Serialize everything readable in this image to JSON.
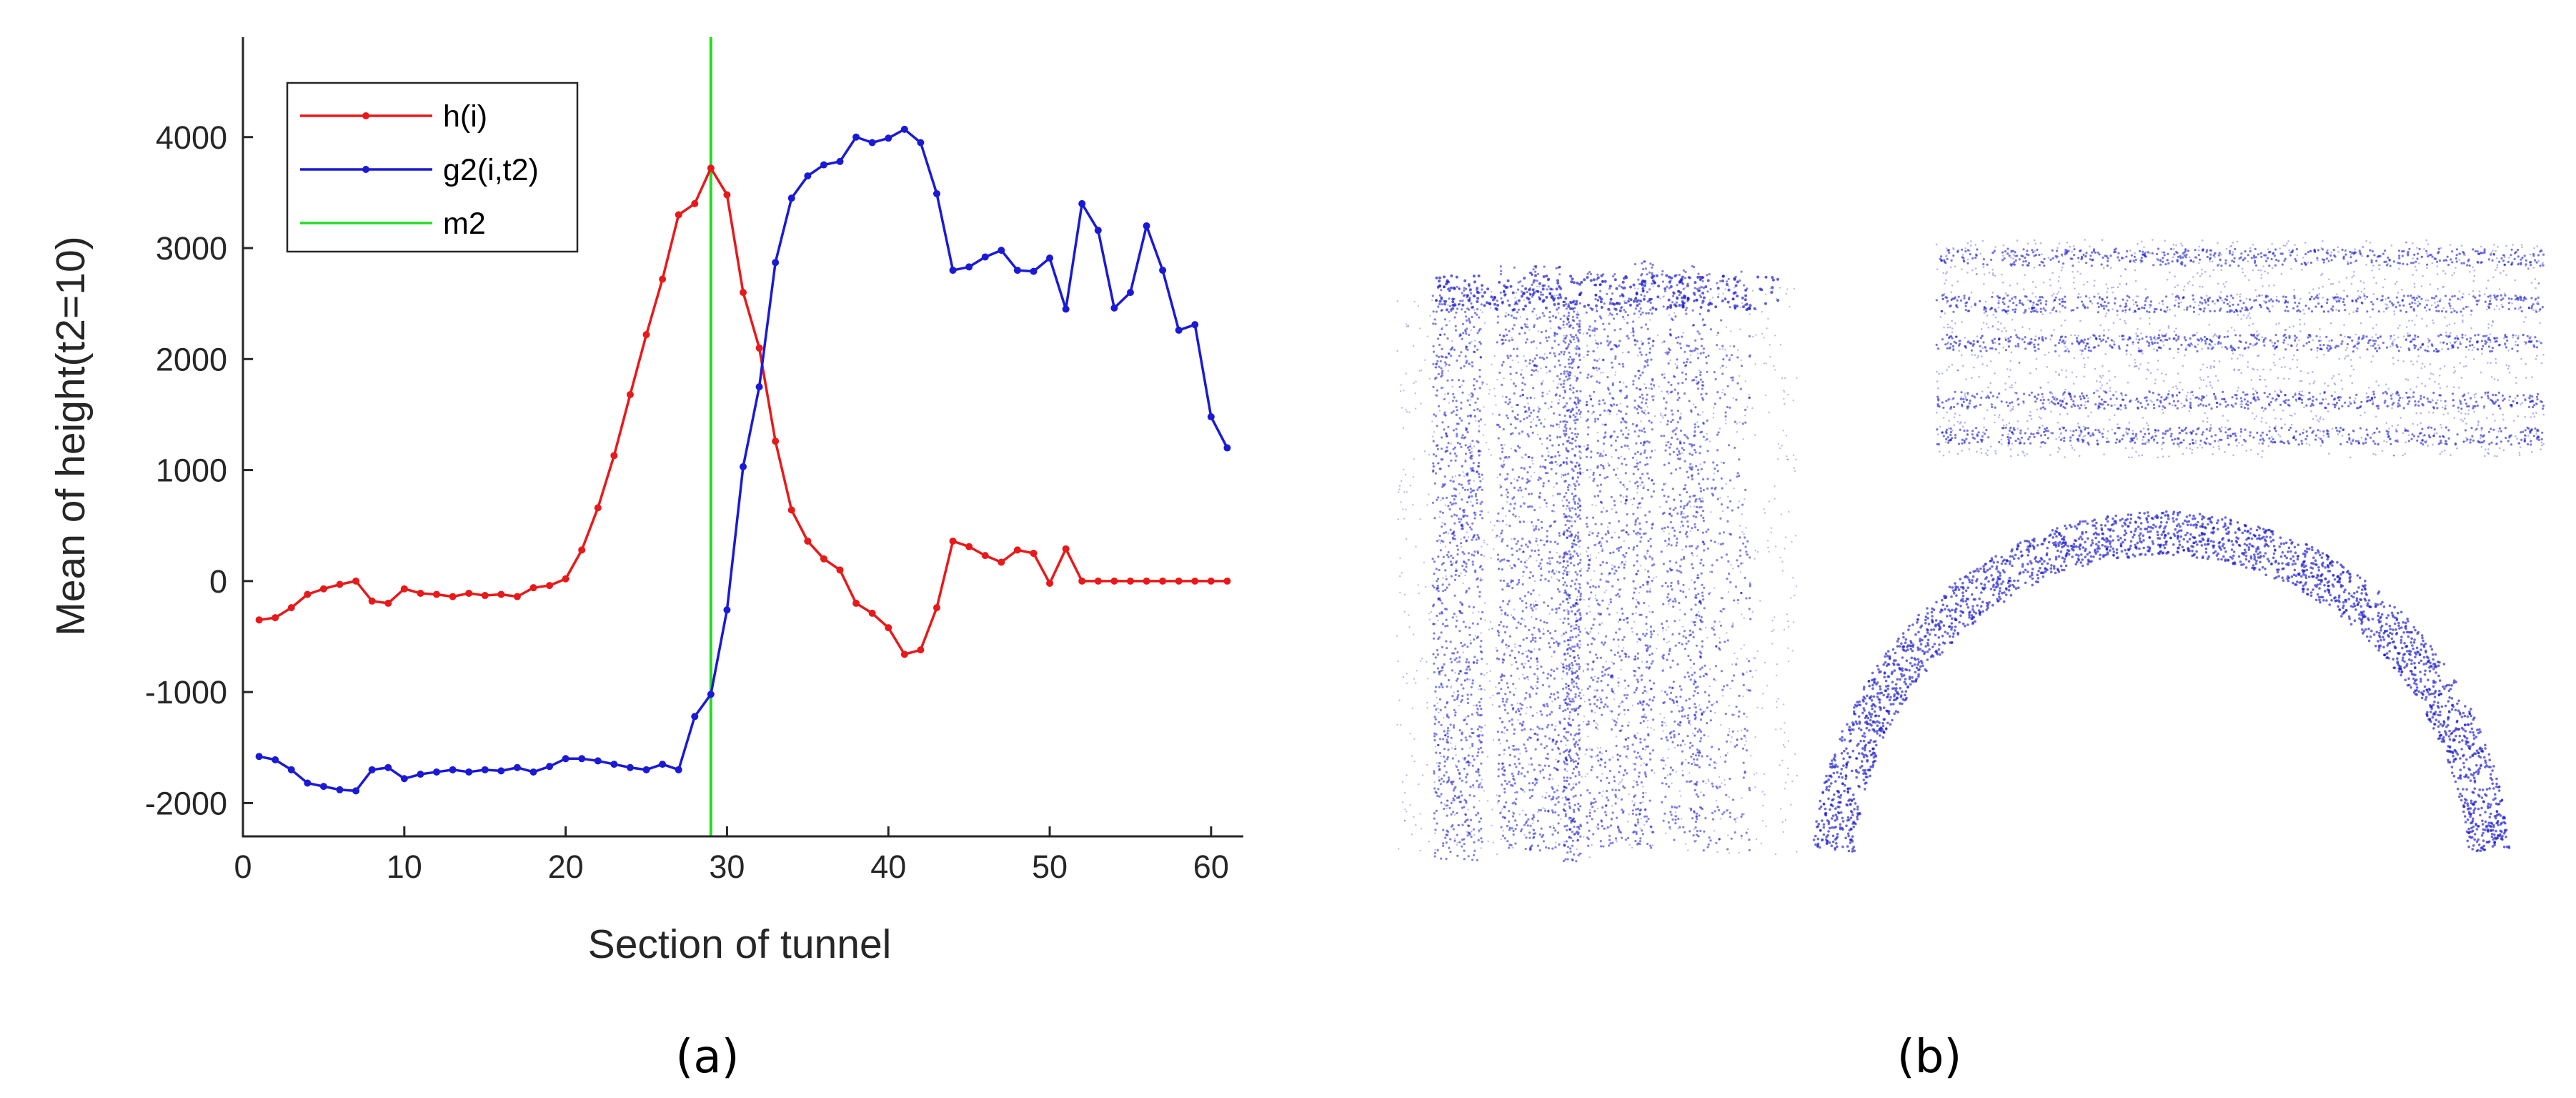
{
  "panel_labels": {
    "a": "(a)",
    "b": "(b)"
  },
  "chart_data": {
    "type": "line",
    "xlabel": "Section of tunnel",
    "ylabel": "Mean of height(t2=10)",
    "xlim": [
      0,
      62
    ],
    "ylim": [
      -2300,
      4900
    ],
    "xticks": [
      0,
      10,
      20,
      30,
      40,
      50,
      60
    ],
    "yticks": [
      -2000,
      -1000,
      0,
      1000,
      2000,
      3000,
      4000
    ],
    "grid": false,
    "legend_position": "top-left",
    "x": [
      1,
      2,
      3,
      4,
      5,
      6,
      7,
      8,
      9,
      10,
      11,
      12,
      13,
      14,
      15,
      16,
      17,
      18,
      19,
      20,
      21,
      22,
      23,
      24,
      25,
      26,
      27,
      28,
      29,
      30,
      31,
      32,
      33,
      34,
      35,
      36,
      37,
      38,
      39,
      40,
      41,
      42,
      43,
      44,
      45,
      46,
      47,
      48,
      49,
      50,
      51,
      52,
      53,
      54,
      55,
      56,
      57,
      58,
      59,
      60,
      61
    ],
    "series": [
      {
        "name": "h(i)",
        "color": "#e8191a",
        "marker": "dot",
        "values": [
          -350,
          -330,
          -240,
          -120,
          -70,
          -30,
          0,
          -180,
          -200,
          -70,
          -110,
          -120,
          -140,
          -110,
          -130,
          -120,
          -140,
          -60,
          -40,
          20,
          280,
          660,
          1130,
          1680,
          2220,
          2720,
          3300,
          3400,
          3720,
          3480,
          2600,
          2100,
          1260,
          640,
          360,
          200,
          100,
          -200,
          -290,
          -420,
          -660,
          -620,
          -240,
          360,
          310,
          230,
          170,
          280,
          250,
          -20,
          290,
          0,
          0,
          0,
          0,
          0,
          0,
          0,
          0,
          0,
          0
        ]
      },
      {
        "name": "g2(i,t2)",
        "color": "#1a1ad6",
        "marker": "dot",
        "values": [
          -1580,
          -1610,
          -1700,
          -1820,
          -1850,
          -1880,
          -1890,
          -1700,
          -1680,
          -1780,
          -1740,
          -1720,
          -1700,
          -1720,
          -1700,
          -1710,
          -1680,
          -1720,
          -1670,
          -1600,
          -1600,
          -1620,
          -1650,
          -1680,
          -1700,
          -1650,
          -1700,
          -1220,
          -1020,
          -260,
          1030,
          1750,
          2870,
          3450,
          3650,
          3750,
          3780,
          4000,
          3950,
          3990,
          4070,
          3950,
          3490,
          2800,
          2830,
          2920,
          2980,
          2800,
          2790,
          2910,
          2450,
          3400,
          3160,
          2460,
          2600,
          3200,
          2800,
          2260,
          2310,
          1480,
          1200
        ]
      },
      {
        "name": "m2",
        "color": "#22dd22",
        "type": "vertical-line",
        "x_value": 29
      }
    ]
  },
  "panel_b": {
    "point_color": "#1a1acc",
    "views": [
      "side-view",
      "top-view",
      "cross-section"
    ]
  }
}
